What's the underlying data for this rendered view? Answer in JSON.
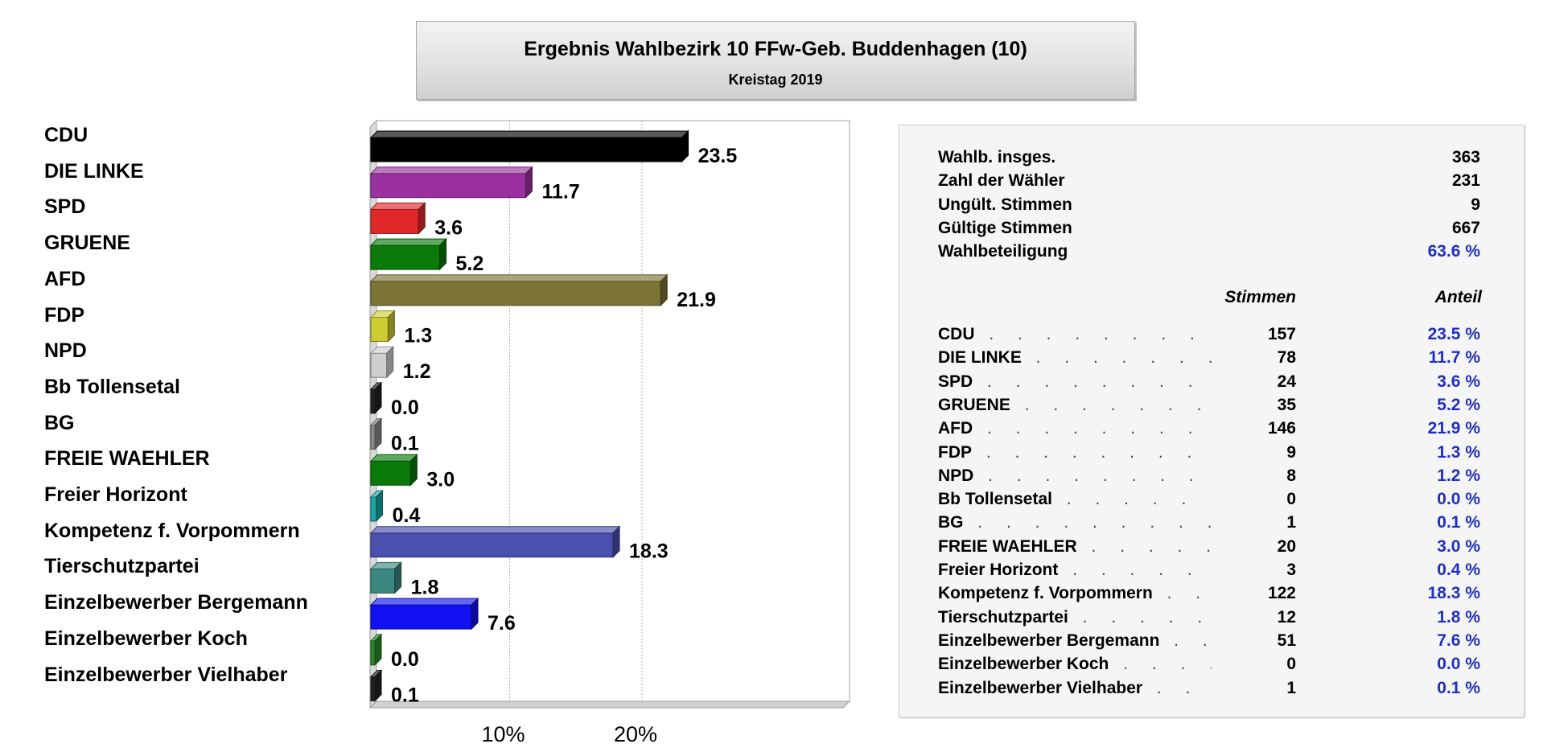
{
  "header": {
    "title": "Ergebnis Wahlbezirk 10 FFw-Geb. Buddenhagen (10)",
    "subtitle": "Kreistag 2019"
  },
  "chart_data": {
    "type": "bar",
    "orientation": "horizontal",
    "categories": [
      "CDU",
      "DIE LINKE",
      "SPD",
      "GRUENE",
      "AFD",
      "FDP",
      "NPD",
      "Bb Tollensetal",
      "BG",
      "FREIE WAEHLER",
      "Freier Horizont",
      "Kompetenz f. Vorpommern",
      "Tierschutzpartei",
      "Einzelbewerber Bergemann",
      "Einzelbewerber Koch",
      "Einzelbewerber Vielhaber"
    ],
    "values": [
      23.5,
      11.7,
      3.6,
      5.2,
      21.9,
      1.3,
      1.2,
      0.0,
      0.1,
      3.0,
      0.4,
      18.3,
      1.8,
      7.6,
      0.0,
      0.1
    ],
    "value_labels": [
      "23.5",
      "11.7",
      "3.6",
      "5.2",
      "21.9",
      "1.3",
      "1.2",
      "0.0",
      "0.1",
      "3.0",
      "0.4",
      "18.3",
      "1.8",
      "7.6",
      "0.0",
      "0.1"
    ],
    "colors": [
      "#000000",
      "#9b30a0",
      "#e02828",
      "#0a7a0a",
      "#7d7438",
      "#cccc33",
      "#cfcfcf",
      "#222222",
      "#8a8a8a",
      "#0a7a0a",
      "#1aa6a6",
      "#4a4fb0",
      "#3a8880",
      "#1010f0",
      "#2a8a2a",
      "#222222"
    ],
    "xlabel": "",
    "ylabel": "",
    "xlim": [
      0,
      35
    ],
    "xticks": [
      10,
      20
    ],
    "xtick_labels": [
      "10%",
      "20%"
    ],
    "grid": true
  },
  "summary": {
    "rows": [
      {
        "label": "Wahlb. insges.",
        "value": "363",
        "blue": false
      },
      {
        "label": "Zahl der Wähler",
        "value": "231",
        "blue": false
      },
      {
        "label": "Ungült. Stimmen",
        "value": "9",
        "blue": false
      },
      {
        "label": "Gültige Stimmen",
        "value": "667",
        "blue": false
      },
      {
        "label": "Wahlbeteiligung",
        "value": "63.6 %",
        "blue": true
      }
    ],
    "col_votes": "Stimmen",
    "col_share": "Anteil"
  },
  "results": [
    {
      "party": "CDU",
      "votes": "157",
      "share": "23.5 %"
    },
    {
      "party": "DIE LINKE",
      "votes": "78",
      "share": "11.7 %"
    },
    {
      "party": "SPD",
      "votes": "24",
      "share": "3.6 %"
    },
    {
      "party": "GRUENE",
      "votes": "35",
      "share": "5.2 %"
    },
    {
      "party": "AFD",
      "votes": "146",
      "share": "21.9 %"
    },
    {
      "party": "FDP",
      "votes": "9",
      "share": "1.3 %"
    },
    {
      "party": "NPD",
      "votes": "8",
      "share": "1.2 %"
    },
    {
      "party": "Bb Tollensetal",
      "votes": "0",
      "share": "0.0 %"
    },
    {
      "party": "BG",
      "votes": "1",
      "share": "0.1 %"
    },
    {
      "party": "FREIE WAEHLER",
      "votes": "20",
      "share": "3.0 %"
    },
    {
      "party": "Freier Horizont",
      "votes": "3",
      "share": "0.4 %"
    },
    {
      "party": "Kompetenz f. Vorpommern",
      "votes": "122",
      "share": "18.3 %"
    },
    {
      "party": "Tierschutzpartei",
      "votes": "12",
      "share": "1.8 %"
    },
    {
      "party": "Einzelbewerber Bergemann",
      "votes": "51",
      "share": "7.6 %"
    },
    {
      "party": "Einzelbewerber Koch",
      "votes": "0",
      "share": "0.0 %"
    },
    {
      "party": "Einzelbewerber Vielhaber",
      "votes": "1",
      "share": "0.1 %"
    }
  ]
}
